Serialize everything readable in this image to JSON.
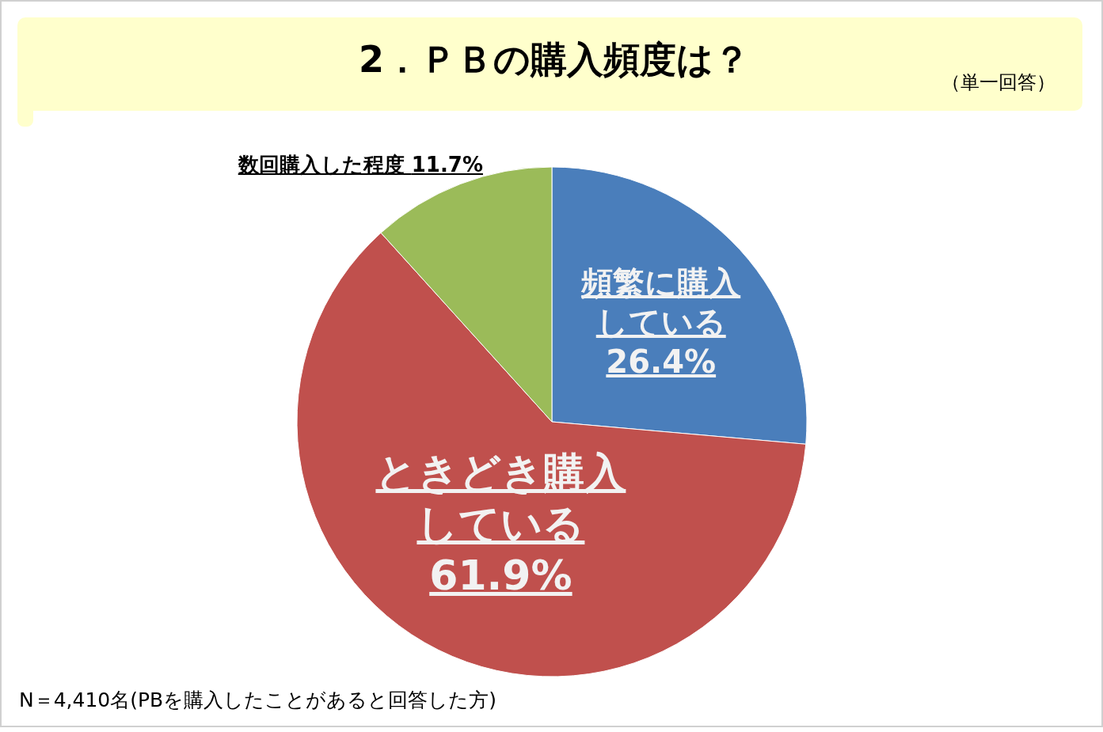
{
  "chart_data": {
    "type": "pie",
    "title": "2．ＰＢの購入頻度は？",
    "subtitle": "（単一回答）",
    "categories": [
      "頻繁に購入している",
      "ときどき購入している",
      "数回購入した程度"
    ],
    "values": [
      26.4,
      61.9,
      11.7
    ],
    "colors": [
      "#4a7ebb",
      "#c0504d",
      "#9bbb59"
    ],
    "value_labels": [
      "26.4%",
      "61.9%",
      "11.7%"
    ],
    "annotations": [
      "N＝4,410名(PBを購入したことがあると回答した方)"
    ]
  }
}
